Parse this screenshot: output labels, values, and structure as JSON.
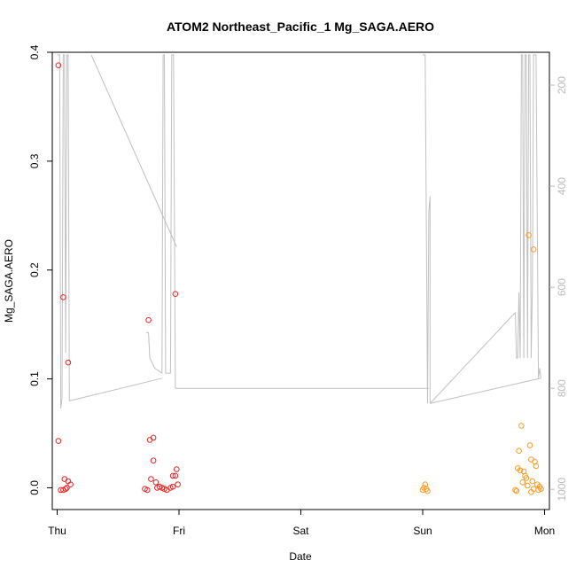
{
  "chart_data": {
    "type": "scatter",
    "title": "ATOM2 Northeast_Pacific_1 Mg_SAGA.AERO",
    "xlabel": "Date",
    "ylabel": "Mg_SAGA.AERO",
    "xlim": [
      -0.04,
      4.04
    ],
    "ylim": [
      -0.02,
      0.4
    ],
    "x_ticks": [
      {
        "value": 0,
        "label": "Thu"
      },
      {
        "value": 1,
        "label": "Fri"
      },
      {
        "value": 2,
        "label": "Sat"
      },
      {
        "value": 3,
        "label": "Sun"
      },
      {
        "value": 4,
        "label": "Mon"
      }
    ],
    "y_ticks": [
      {
        "value": 0.0,
        "label": "0.0"
      },
      {
        "value": 0.1,
        "label": "0.1"
      },
      {
        "value": 0.2,
        "label": "0.2"
      },
      {
        "value": 0.3,
        "label": "0.3"
      },
      {
        "value": 0.4,
        "label": "0.4"
      }
    ],
    "secondary_y": {
      "reversed": true,
      "range": [
        135,
        1040
      ],
      "ticks": [
        {
          "value": 200,
          "label": "200"
        },
        {
          "value": 400,
          "label": "400"
        },
        {
          "value": 600,
          "label": "600"
        },
        {
          "value": 800,
          "label": "800"
        },
        {
          "value": 1000,
          "label": "1000"
        }
      ],
      "color": "#bbbbbb"
    },
    "series": [
      {
        "marker": "circle-open",
        "color": "#ee2222",
        "points": [
          [
            0.01,
            0.388
          ],
          [
            0.05,
            0.175
          ],
          [
            0.09,
            0.115
          ],
          [
            0.01,
            0.043
          ],
          [
            0.06,
            0.008
          ],
          [
            0.09,
            0.006
          ],
          [
            0.11,
            0.003
          ],
          [
            0.03,
            -0.002
          ],
          [
            0.05,
            -0.002
          ],
          [
            0.07,
            -0.001
          ],
          [
            0.08,
            0.0
          ],
          [
            0.75,
            0.154
          ],
          [
            0.97,
            0.178
          ],
          [
            0.79,
            0.046
          ],
          [
            0.76,
            0.044
          ],
          [
            0.79,
            0.025
          ],
          [
            0.77,
            0.008
          ],
          [
            0.81,
            0.005
          ],
          [
            0.95,
            0.011
          ],
          [
            0.98,
            0.017
          ],
          [
            0.97,
            0.011
          ],
          [
            0.99,
            0.003
          ],
          [
            0.72,
            -0.001
          ],
          [
            0.74,
            -0.002
          ],
          [
            0.82,
            0.0
          ],
          [
            0.84,
            0.001
          ],
          [
            0.86,
            0.0
          ],
          [
            0.88,
            -0.001
          ],
          [
            0.9,
            -0.002
          ],
          [
            0.93,
            0.0
          ],
          [
            0.95,
            0.001
          ]
        ]
      },
      {
        "marker": "circle-open",
        "color": "#ff9922",
        "points": [
          [
            3.02,
            0.003
          ],
          [
            3.01,
            0.0
          ],
          [
            3.03,
            -0.001
          ],
          [
            3.0,
            -0.002
          ],
          [
            3.04,
            -0.003
          ],
          [
            3.87,
            0.232
          ],
          [
            3.91,
            0.219
          ],
          [
            3.81,
            0.057
          ],
          [
            3.88,
            0.039
          ],
          [
            3.79,
            0.034
          ],
          [
            3.89,
            0.026
          ],
          [
            3.92,
            0.024
          ],
          [
            3.93,
            0.02
          ],
          [
            3.78,
            0.018
          ],
          [
            3.8,
            0.016
          ],
          [
            3.83,
            0.015
          ],
          [
            3.84,
            0.011
          ],
          [
            3.85,
            0.009
          ],
          [
            3.9,
            0.006
          ],
          [
            3.82,
            0.005
          ],
          [
            3.86,
            0.002
          ],
          [
            3.94,
            0.003
          ],
          [
            3.96,
            0.001
          ],
          [
            3.97,
            -0.001
          ],
          [
            3.76,
            -0.002
          ],
          [
            3.77,
            -0.003
          ],
          [
            3.95,
            -0.002
          ],
          [
            3.89,
            -0.004
          ],
          [
            3.91,
            -0.001
          ]
        ]
      },
      {
        "type": "line",
        "color": "#c0c0c0",
        "axis": "secondary",
        "points": [
          [
            0.0,
            140
          ],
          [
            0.03,
            140
          ],
          [
            0.04,
            850
          ],
          [
            0.05,
            840
          ],
          [
            0.055,
            600
          ],
          [
            0.06,
            140
          ],
          [
            0.07,
            140
          ],
          [
            0.075,
            700
          ],
          [
            0.08,
            720
          ],
          [
            0.09,
            140
          ],
          [
            0.1,
            140
          ],
          [
            0.11,
            820
          ],
          [
            0.28,
            140
          ],
          [
            0.95,
            520
          ],
          [
            0.98,
            525
          ],
          [
            0.73,
            690
          ],
          [
            0.74,
            690
          ],
          [
            0.75,
            690
          ],
          [
            0.755,
            740
          ],
          [
            0.77,
            750
          ],
          [
            0.78,
            750
          ],
          [
            0.79,
            750
          ],
          [
            0.8,
            770
          ],
          [
            0.83,
            770
          ],
          [
            0.86,
            770
          ],
          [
            0.87,
            140
          ],
          [
            0.88,
            140
          ],
          [
            0.89,
            770
          ],
          [
            0.94,
            770
          ],
          [
            0.945,
            140
          ],
          [
            0.96,
            140
          ],
          [
            0.97,
            800
          ],
          [
            3.0,
            140
          ],
          [
            3.02,
            140
          ],
          [
            3.04,
            450
          ],
          [
            3.05,
            400
          ],
          [
            3.05,
            800
          ],
          [
            3.76,
            660
          ],
          [
            3.78,
            660
          ],
          [
            3.79,
            740
          ],
          [
            3.8,
            600
          ],
          [
            3.81,
            740
          ],
          [
            3.82,
            140
          ],
          [
            3.83,
            140
          ],
          [
            3.84,
            740
          ],
          [
            3.85,
            140
          ],
          [
            3.86,
            140
          ],
          [
            3.87,
            740
          ],
          [
            3.88,
            140
          ],
          [
            3.89,
            140
          ],
          [
            3.9,
            740
          ],
          [
            3.91,
            740
          ],
          [
            3.92,
            140
          ],
          [
            3.94,
            140
          ],
          [
            3.96,
            780
          ],
          [
            3.97,
            760
          ],
          [
            3.98,
            780
          ]
        ],
        "segments": [
          [
            [
              0.0,
              140
            ],
            [
              0.02,
              140
            ],
            [
              0.03,
              840
            ],
            [
              0.04,
              820
            ],
            [
              0.05,
              140
            ],
            [
              0.06,
              140
            ],
            [
              0.07,
              730
            ],
            [
              0.08,
              140
            ],
            [
              0.09,
              140
            ],
            [
              0.1,
              825
            ]
          ],
          [
            [
              0.28,
              140
            ],
            [
              0.98,
              520
            ]
          ],
          [
            [
              0.1,
              825
            ],
            [
              0.86,
              780
            ]
          ],
          [
            [
              0.73,
              690
            ],
            [
              0.75,
              690
            ],
            [
              0.76,
              740
            ],
            [
              0.78,
              750
            ],
            [
              0.8,
              760
            ],
            [
              0.83,
              765
            ],
            [
              0.86,
              770
            ],
            [
              0.87,
              140
            ],
            [
              0.88,
              140
            ],
            [
              0.89,
              770
            ],
            [
              0.93,
              770
            ],
            [
              0.94,
              140
            ],
            [
              0.955,
              140
            ],
            [
              0.97,
              800
            ]
          ],
          [
            [
              0.97,
              800
            ],
            [
              3.05,
              800
            ]
          ],
          [
            [
              3.0,
              140
            ],
            [
              3.02,
              140
            ],
            [
              3.04,
              830
            ],
            [
              3.05,
              450
            ],
            [
              3.06,
              420
            ],
            [
              3.06,
              830
            ]
          ],
          [
            [
              3.06,
              830
            ],
            [
              3.76,
              650
            ]
          ],
          [
            [
              3.76,
              650
            ],
            [
              3.77,
              740
            ],
            [
              3.78,
              740
            ],
            [
              3.79,
              610
            ],
            [
              3.8,
              740
            ],
            [
              3.81,
              140
            ],
            [
              3.82,
              140
            ],
            [
              3.83,
              740
            ],
            [
              3.84,
              140
            ],
            [
              3.85,
              140
            ],
            [
              3.86,
              740
            ],
            [
              3.87,
              140
            ],
            [
              3.88,
              140
            ],
            [
              3.89,
              740
            ],
            [
              3.9,
              600
            ],
            [
              3.91,
              140
            ],
            [
              3.93,
              140
            ],
            [
              3.95,
              780
            ],
            [
              3.96,
              760
            ],
            [
              3.97,
              780
            ]
          ],
          [
            [
              3.97,
              780
            ],
            [
              3.06,
              830
            ]
          ]
        ]
      }
    ]
  }
}
